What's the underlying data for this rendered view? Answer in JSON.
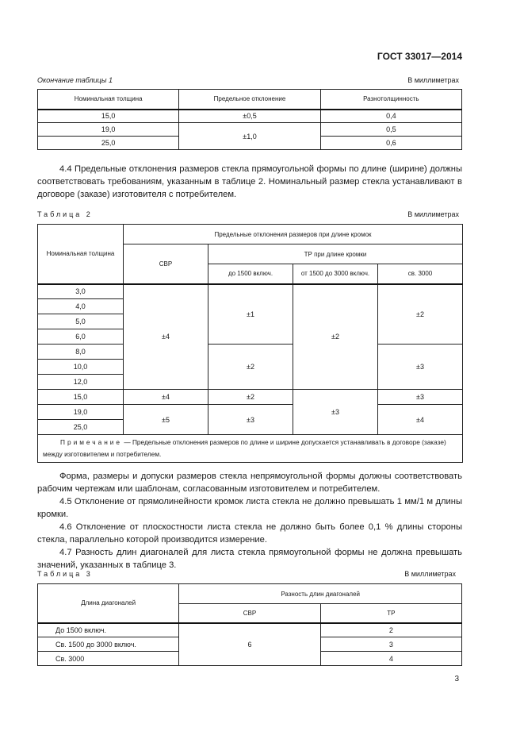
{
  "header": {
    "standard": "ГОСТ 33017—2014"
  },
  "table1": {
    "caption": "Окончание таблицы 1",
    "units": "В миллиметрах",
    "headers": [
      "Номинальная толщина",
      "Предельное отклонение",
      "Разнотолщинность"
    ],
    "rows": [
      [
        "15,0",
        "±0,5",
        "0,4"
      ],
      [
        "19,0",
        "±1,0",
        "0,5"
      ],
      [
        "25,0",
        "",
        "0,6"
      ]
    ]
  },
  "para_4_4": "4.4 Предельные отклонения размеров стекла прямоугольной формы по длине (ширине) должны соответствовать требованиям, указанным в таблице 2. Номинальный размер стекла устанавливают в договоре (заказе) изготовителя с потребителем.",
  "table2": {
    "caption": "Таблица 2",
    "units": "В миллиметрах",
    "h_thickness": "Номинальная толщина",
    "h_main": "Предельные отклонения размеров при длине кромок",
    "h_svr": "СВР",
    "h_tr": "ТР при длине кромки",
    "h_tr_cols": [
      "до 1500 включ.",
      "от 1500 до 3000 включ.",
      "св. 3000"
    ],
    "thickness": [
      "3,0",
      "4,0",
      "5,0",
      "6,0",
      "8,0",
      "10,0",
      "12,0",
      "15,0",
      "19,0",
      "25,0"
    ],
    "v": {
      "svr_a": "±4",
      "tr1_a": "±1",
      "tr2_a": "±2",
      "tr3_a": "±2",
      "tr1_b": "±2",
      "tr3_b": "±3",
      "svr_15": "±4",
      "tr1_15": "±2",
      "tr3_15": "±3",
      "tr2_c": "±3",
      "svr_d": "±5",
      "tr1_d": "±3",
      "tr3_d": "±4"
    },
    "note_label": "Примечание",
    "note": " — Предельные отклонения размеров по длине и ширине допускается устанавливать в договоре (заказе) между изготовителем и потребителем."
  },
  "paras": [
    "Форма, размеры и допуски размеров стекла непрямоугольной формы должны соответствовать рабочим чертежам или шаблонам, согласованным изготовителем и потребителем.",
    "4.5 Отклонение от прямолинейности кромок листа стекла не должно превышать 1 мм/1 м длины кромки.",
    "4.6 Отклонение от плоскостности листа стекла не должно быть более 0,1 % длины стороны стекла, параллельно которой производится измерение.",
    "4.7 Разность длин диагоналей для листа стекла прямоугольной формы не должна превышать значений, указанных в таблице 3."
  ],
  "table3": {
    "caption": "Таблица 3",
    "units": "В миллиметрах",
    "h_length": "Длина диагоналей",
    "h_main": "Разность длин диагоналей",
    "h_svr": "СВР",
    "h_tr": "ТР",
    "rows": [
      [
        "До 1500 включ.",
        "6",
        "2"
      ],
      [
        "Св. 1500 до 3000 включ.",
        "",
        "3"
      ],
      [
        "Св. 3000",
        "",
        "4"
      ]
    ]
  },
  "page_number": "3"
}
